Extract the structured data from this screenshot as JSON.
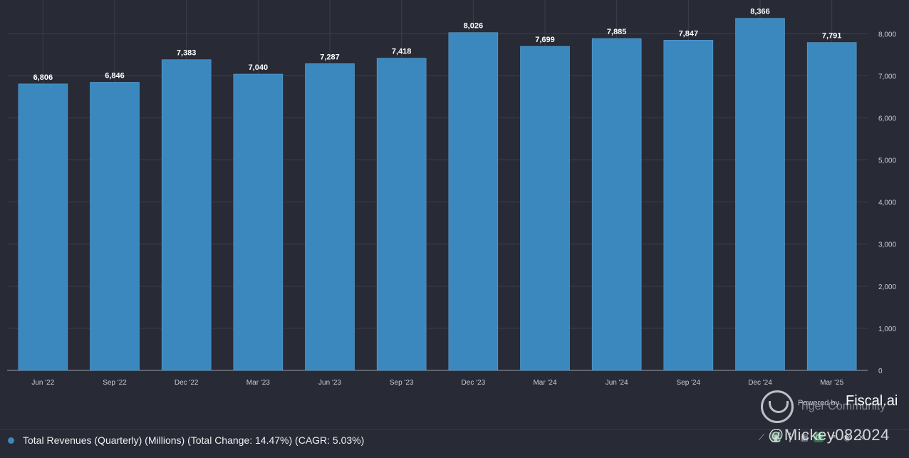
{
  "chart_data": {
    "type": "bar",
    "categories": [
      "Jun '22",
      "Sep '22",
      "Dec '22",
      "Mar '23",
      "Jun '23",
      "Sep '23",
      "Dec '23",
      "Mar '24",
      "Jun '24",
      "Sep '24",
      "Dec '24",
      "Mar '25"
    ],
    "series": [
      {
        "values": [
          6806,
          6846,
          7383,
          7040,
          7287,
          7418,
          8026,
          7699,
          7885,
          7847,
          8366,
          7791
        ],
        "color": "#3b88bf"
      }
    ],
    "data_labels": [
      "6,806",
      "6,846",
      "7,383",
      "7,040",
      "7,287",
      "7,418",
      "8,026",
      "7,699",
      "7,885",
      "7,847",
      "8,366",
      "7,791"
    ],
    "yticks": [
      0,
      1000,
      2000,
      3000,
      4000,
      5000,
      6000,
      7000,
      8000
    ],
    "ytick_labels": [
      "0",
      "1,000",
      "2,000",
      "3,000",
      "4,000",
      "5,000",
      "6,000",
      "7,000",
      "8,000"
    ],
    "ylim": [
      0,
      8800
    ],
    "y_axis_side": "right",
    "grid": true
  },
  "legend": {
    "text": "Total Revenues (Quarterly) (Millions) (Total Change: 14.47%) (CAGR: 5.03%)",
    "color": "#3b88bf"
  },
  "branding": {
    "powered_by": "Powered by",
    "brand": "Fiscal.ai",
    "community": "Tiger Community",
    "handle": "@Mickey082024"
  },
  "colors": {
    "background": "#282a35",
    "grid": "#3c3f4c",
    "bar": "#3b88bf"
  },
  "toolbar_icons": [
    "line-chart-icon",
    "bar-chart-icon",
    "candle-icon",
    "table-icon",
    "settings-icon",
    "share-icon",
    "eye-icon",
    "close-icon"
  ]
}
